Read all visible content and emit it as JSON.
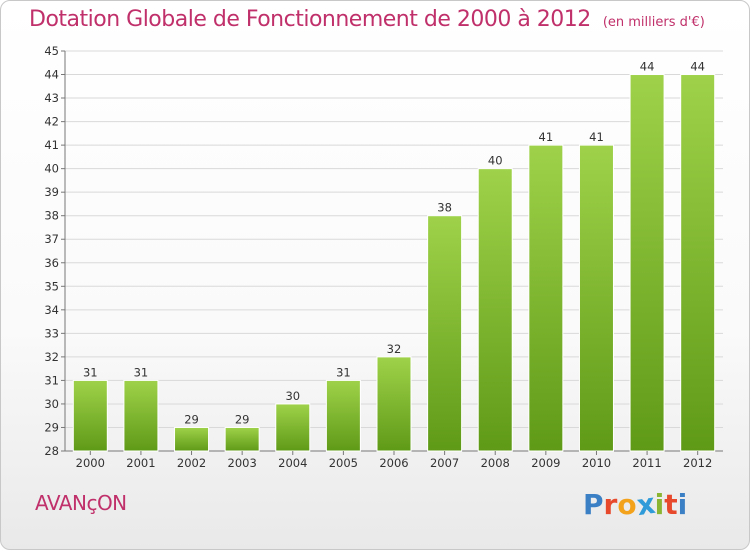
{
  "chart_title": "Dotation Globale de Fonctionnement de 2000 à 2012",
  "chart_subtitle": "(en milliers d'€)",
  "commune_name": "AVANçON",
  "logo": {
    "letters": [
      "P",
      "r",
      "o",
      "x",
      "i",
      "t",
      "i"
    ],
    "colors": [
      "#3b7fc4",
      "#e7492d",
      "#f3a21b",
      "#2f9bd8",
      "#8ab532",
      "#e7492d",
      "#3b7fc4"
    ]
  },
  "colors": {
    "title": "#c0306a",
    "bar_light": "#9fd24a",
    "bar_dark": "#5f9a17",
    "grid": "#d9d9d9"
  },
  "chart_data": {
    "type": "bar",
    "title": "Dotation Globale de Fonctionnement de 2000 à 2012",
    "xlabel": "",
    "ylabel": "",
    "categories": [
      "2000",
      "2001",
      "2002",
      "2003",
      "2004",
      "2005",
      "2006",
      "2007",
      "2008",
      "2009",
      "2010",
      "2011",
      "2012"
    ],
    "values": [
      31,
      31,
      29,
      29,
      30,
      31,
      32,
      38,
      40,
      41,
      41,
      44,
      44
    ],
    "ylim": [
      28,
      45
    ],
    "yticks": [
      28,
      29,
      30,
      31,
      32,
      33,
      34,
      35,
      36,
      37,
      38,
      39,
      40,
      41,
      42,
      43,
      44,
      45
    ],
    "grid": true
  }
}
